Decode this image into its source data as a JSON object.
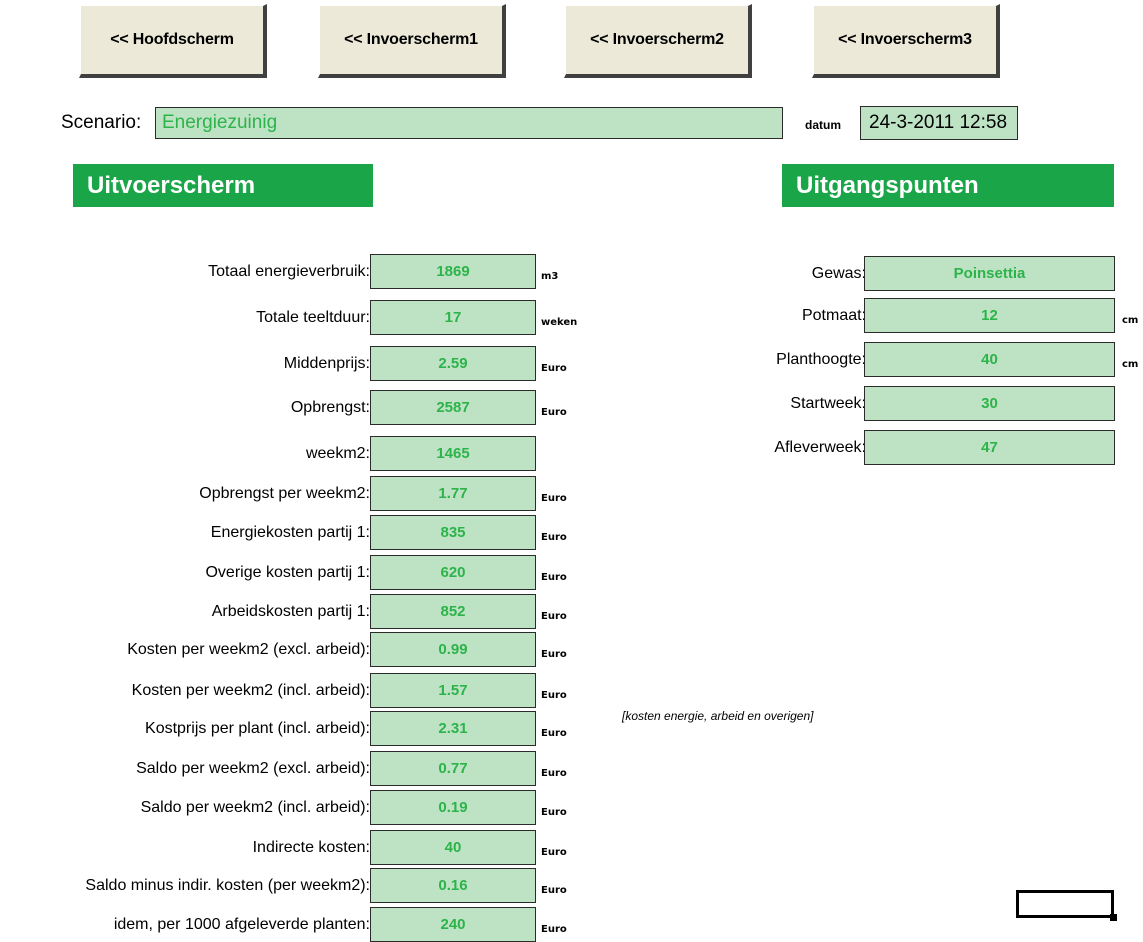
{
  "nav": {
    "hoofdscherm": "<< Hoofdscherm",
    "invoer1": "<< Invoerscherm1",
    "invoer2": "<< Invoerscherm2",
    "invoer3": "<< Invoerscherm3"
  },
  "scenario": {
    "label": "Scenario:",
    "value": "Energiezuinig"
  },
  "datum": {
    "label": "datum",
    "value": "24-3-2011 12:58"
  },
  "sections": {
    "output": "Uitvoerscherm",
    "inputs": "Uitgangspunten"
  },
  "output_rows": [
    {
      "label": "Totaal energieverbruik:",
      "value": "1869",
      "unit": "m3"
    },
    {
      "label": "Totale teeltduur:",
      "value": "17",
      "unit": "weken"
    },
    {
      "label": "Middenprijs:",
      "value": "2.59",
      "unit": "Euro"
    },
    {
      "label": "Opbrengst:",
      "value": "2587",
      "unit": "Euro"
    },
    {
      "label": "weekm2:",
      "value": "1465",
      "unit": ""
    },
    {
      "label": "Opbrengst per weekm2:",
      "value": "1.77",
      "unit": "Euro"
    },
    {
      "label": "Energiekosten partij 1:",
      "value": "835",
      "unit": "Euro"
    },
    {
      "label": "Overige kosten partij 1:",
      "value": "620",
      "unit": "Euro"
    },
    {
      "label": "Arbeidskosten partij 1:",
      "value": "852",
      "unit": "Euro"
    },
    {
      "label": "Kosten per weekm2 (excl. arbeid):",
      "value": "0.99",
      "unit": "Euro"
    },
    {
      "label": "Kosten per weekm2 (incl. arbeid):",
      "value": "1.57",
      "unit": "Euro"
    },
    {
      "label": "Kostprijs per plant (incl. arbeid):",
      "value": "2.31",
      "unit": "Euro"
    },
    {
      "label": "Saldo per weekm2 (excl. arbeid):",
      "value": "0.77",
      "unit": "Euro"
    },
    {
      "label": "Saldo per weekm2 (incl. arbeid):",
      "value": "0.19",
      "unit": "Euro"
    },
    {
      "label": "Indirecte kosten:",
      "value": "40",
      "unit": "Euro"
    },
    {
      "label": "Saldo minus indir. kosten (per weekm2):",
      "value": "0.16",
      "unit": "Euro"
    },
    {
      "label": "idem, per 1000 afgeleverde planten:",
      "value": "240",
      "unit": "Euro"
    }
  ],
  "input_rows": [
    {
      "label": "Gewas:",
      "value": "Poinsettia",
      "unit": ""
    },
    {
      "label": "Potmaat:",
      "value": "12",
      "unit": "cm"
    },
    {
      "label": "Planthoogte:",
      "value": "40",
      "unit": "cm"
    },
    {
      "label": "Startweek:",
      "value": "30",
      "unit": ""
    },
    {
      "label": "Afleverweek:",
      "value": "47",
      "unit": ""
    }
  ],
  "note": "[kosten energie, arbeid en overigen]",
  "colors": {
    "header_green": "#1aa648",
    "field_green": "#bde3c4",
    "value_text": "#2db34a"
  }
}
